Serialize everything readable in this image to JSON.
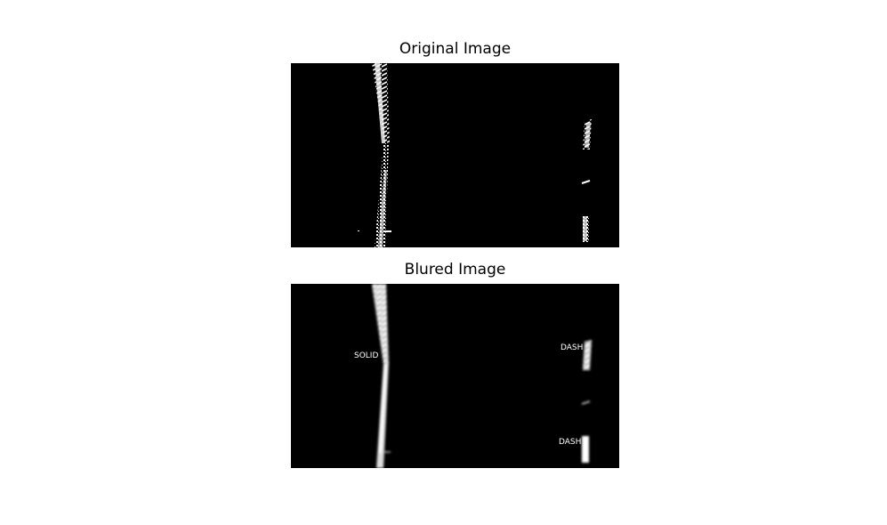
{
  "panels": [
    {
      "title": "Original Image",
      "labels": []
    },
    {
      "title": "Blured Image",
      "labels": [
        "SOLID",
        "DASH",
        "DASH"
      ]
    }
  ]
}
